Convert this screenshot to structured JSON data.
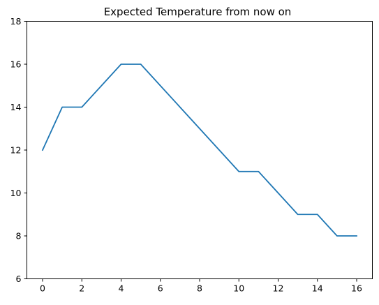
{
  "chart_data": {
    "type": "line",
    "title": "Expected Temperature from now on",
    "xlabel": "",
    "ylabel": "",
    "x": [
      0,
      1,
      2,
      3,
      4,
      5,
      6,
      7,
      8,
      9,
      10,
      11,
      12,
      13,
      14,
      15,
      16
    ],
    "series": [
      {
        "values": [
          12,
          14,
          14,
          15,
          16,
          16,
          15,
          14,
          13,
          12,
          11,
          11,
          10,
          9,
          9,
          8,
          8
        ],
        "color": "#1f77b4"
      }
    ],
    "xlim": [
      -0.8,
      16.8
    ],
    "ylim": [
      6,
      18
    ],
    "xticks": [
      0,
      2,
      4,
      6,
      8,
      10,
      12,
      14,
      16
    ],
    "yticks": [
      6,
      8,
      10,
      12,
      14,
      16,
      18
    ],
    "grid": false,
    "legend": "none"
  }
}
